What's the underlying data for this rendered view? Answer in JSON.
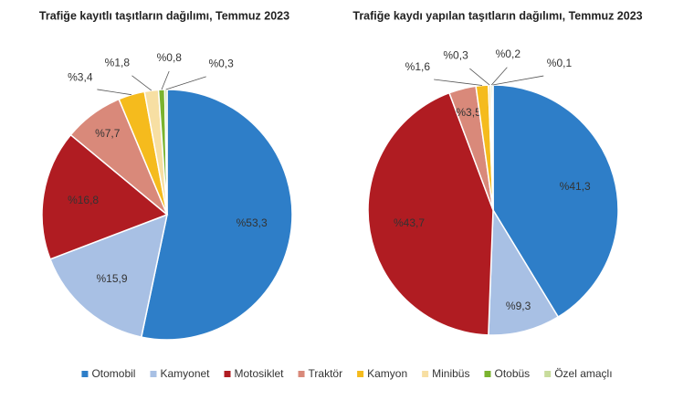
{
  "categories": [
    "Otomobil",
    "Kamyonet",
    "Motosiklet",
    "Traktör",
    "Kamyon",
    "Minibüs",
    "Otobüs",
    "Özel amaçlı"
  ],
  "colors": [
    "#2e7ec8",
    "#a8c0e4",
    "#b01c22",
    "#d9897a",
    "#f5bb1d",
    "#f7dfa3",
    "#7ab32e",
    "#c8dc9c"
  ],
  "chart_data": [
    {
      "type": "pie",
      "title": "Trafiğe kayıtlı taşıtların dağılımı, Temmuz 2023",
      "values": [
        53.3,
        15.9,
        16.8,
        7.7,
        3.4,
        1.8,
        0.8,
        0.3
      ],
      "value_labels": [
        "%53,3",
        "%15,9",
        "%16,8",
        "%7,7",
        "%3,4",
        "%1,8",
        "%0,8",
        "%0,3"
      ]
    },
    {
      "type": "pie",
      "title": "Trafiğe kaydı yapılan taşıtların dağılımı, Temmuz 2023",
      "values": [
        41.3,
        9.3,
        43.7,
        3.5,
        1.6,
        0.3,
        0.2,
        0.1
      ],
      "value_labels": [
        "%41,3",
        "%9,3",
        "%43,7",
        "%3,5",
        "%1,6",
        "%0,3",
        "%0,2",
        "%0,1"
      ]
    }
  ]
}
